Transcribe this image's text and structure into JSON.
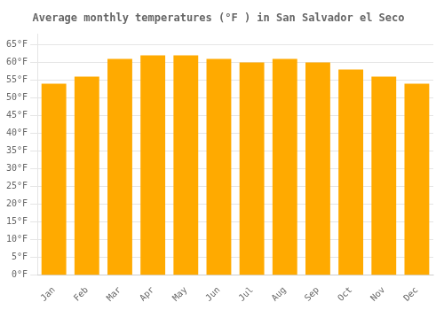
{
  "chart_data": {
    "type": "bar",
    "title": "Average monthly temperatures (°F ) in San Salvador el Seco",
    "categories": [
      "Jan",
      "Feb",
      "Mar",
      "Apr",
      "May",
      "Jun",
      "Jul",
      "Aug",
      "Sep",
      "Oct",
      "Nov",
      "Dec"
    ],
    "values": [
      54,
      56,
      61,
      62,
      62,
      61,
      60,
      61,
      60,
      58,
      56,
      54
    ],
    "color": "#FFAA00",
    "ylim": [
      0,
      68
    ],
    "yticks": [
      {
        "value": 0,
        "label": "0°F"
      },
      {
        "value": 5,
        "label": "5°F"
      },
      {
        "value": 10,
        "label": "10°F"
      },
      {
        "value": 15,
        "label": "15°F"
      },
      {
        "value": 20,
        "label": "20°F"
      },
      {
        "value": 25,
        "label": "25°F"
      },
      {
        "value": 30,
        "label": "30°F"
      },
      {
        "value": 35,
        "label": "35°F"
      },
      {
        "value": 40,
        "label": "40°F"
      },
      {
        "value": 45,
        "label": "45°F"
      },
      {
        "value": 50,
        "label": "50°F"
      },
      {
        "value": 55,
        "label": "55°F"
      },
      {
        "value": 60,
        "label": "60°F"
      },
      {
        "value": 65,
        "label": "65°F"
      }
    ],
    "grid": true
  }
}
